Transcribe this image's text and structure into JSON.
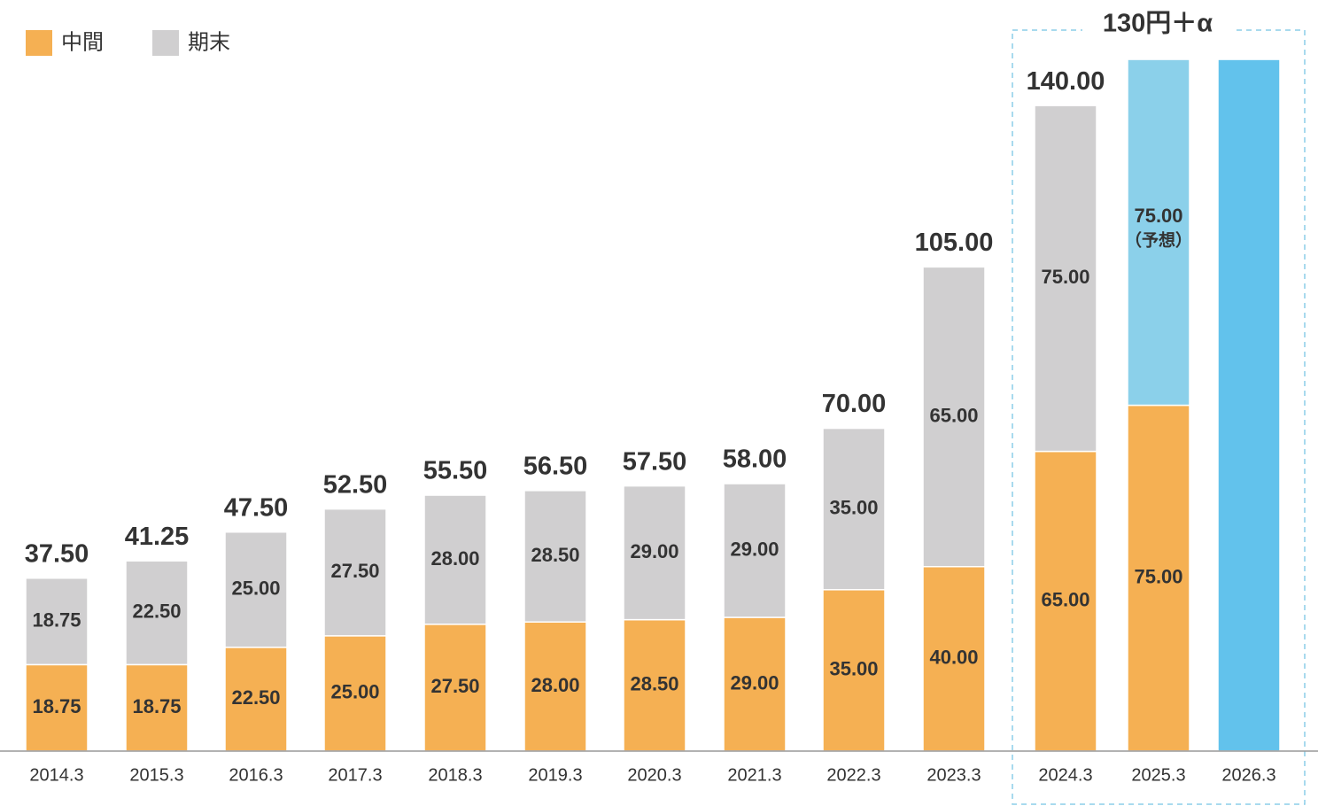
{
  "chart_data": {
    "type": "bar",
    "stacked": true,
    "title": "130円＋α",
    "categories": [
      "2014.3",
      "2015.3",
      "2016.3",
      "2017.3",
      "2018.3",
      "2019.3",
      "2020.3",
      "2021.3",
      "2022.3",
      "2023.3",
      "2024.3",
      "2025.3",
      "2026.3"
    ],
    "series": [
      {
        "name": "中間",
        "color": "#f5b053",
        "values": [
          18.75,
          18.75,
          22.5,
          25,
          27.5,
          28,
          28.5,
          29,
          35,
          40,
          65,
          75,
          null
        ],
        "value_labels": [
          "18.75",
          "18.75",
          "22.50",
          "25.00",
          "27.50",
          "28.00",
          "28.50",
          "29.00",
          "35.00",
          "40.00",
          "65.00",
          "75.00",
          null
        ]
      },
      {
        "name": "期末",
        "color": "#d0cfd0",
        "colors": [
          "#d0cfd0",
          "#d0cfd0",
          "#d0cfd0",
          "#d0cfd0",
          "#d0cfd0",
          "#d0cfd0",
          "#d0cfd0",
          "#d0cfd0",
          "#d0cfd0",
          "#d0cfd0",
          "#d0cfd0",
          "#8bd0ea",
          null
        ],
        "values": [
          18.75,
          22.5,
          25,
          27.5,
          28,
          28.5,
          29,
          29,
          35,
          65,
          75,
          75,
          null
        ],
        "value_labels": [
          "18.75",
          "22.50",
          "25.00",
          "27.50",
          "28.00",
          "28.50",
          "29.00",
          "29.00",
          "35.00",
          "65.00",
          "75.00",
          "75.00",
          null
        ]
      },
      {
        "color": "#62c2ec",
        "values": [
          null,
          null,
          null,
          null,
          null,
          null,
          null,
          null,
          null,
          null,
          null,
          null,
          150
        ]
      }
    ],
    "totals": [
      37.5,
      41.25,
      47.5,
      52.5,
      55.5,
      56.5,
      57.5,
      58,
      70,
      105,
      140,
      null,
      null
    ],
    "total_labels": [
      "37.50",
      "41.25",
      "47.50",
      "52.50",
      "55.50",
      "56.50",
      "57.50",
      "58.00",
      "70.00",
      "105.00",
      "140.00",
      null,
      null
    ],
    "annotations": [
      {
        "text": "（予想）"
      }
    ],
    "ylim": [
      0,
      160
    ]
  }
}
